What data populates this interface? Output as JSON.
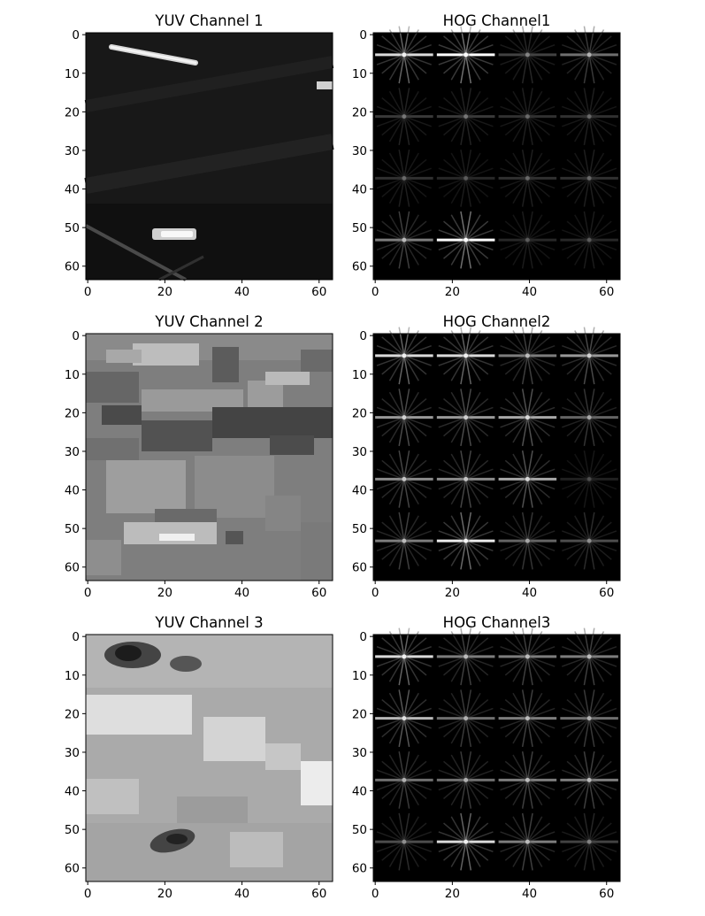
{
  "chart_data": [
    {
      "type": "heatmap",
      "kind": "yuv",
      "channel": 0,
      "title": "YUV Channel 1",
      "xticks": [
        "0",
        "20",
        "40",
        "60"
      ],
      "yticks": [
        "0",
        "10",
        "20",
        "30",
        "40",
        "50",
        "60"
      ],
      "xlim": [
        -0.5,
        63.5
      ],
      "ylim": [
        63.5,
        -0.5
      ],
      "grid": false,
      "colormap": "gray"
    },
    {
      "type": "heatmap",
      "kind": "hog",
      "channel": 0,
      "title": "HOG Channel1",
      "xticks": [
        "0",
        "20",
        "40",
        "60"
      ],
      "yticks": [
        "0",
        "10",
        "20",
        "30",
        "40",
        "50",
        "60"
      ],
      "xlim": [
        -0.5,
        63.5
      ],
      "ylim": [
        63.5,
        -0.5
      ],
      "grid": false,
      "colormap": "gray"
    },
    {
      "type": "heatmap",
      "kind": "yuv",
      "channel": 1,
      "title": "YUV Channel 2",
      "xticks": [
        "0",
        "20",
        "40",
        "60"
      ],
      "yticks": [
        "0",
        "10",
        "20",
        "30",
        "40",
        "50",
        "60"
      ],
      "xlim": [
        -0.5,
        63.5
      ],
      "ylim": [
        63.5,
        -0.5
      ],
      "grid": false,
      "colormap": "gray"
    },
    {
      "type": "heatmap",
      "kind": "hog",
      "channel": 1,
      "title": "HOG Channel2",
      "xticks": [
        "0",
        "20",
        "40",
        "60"
      ],
      "yticks": [
        "0",
        "10",
        "20",
        "30",
        "40",
        "50",
        "60"
      ],
      "xlim": [
        -0.5,
        63.5
      ],
      "ylim": [
        63.5,
        -0.5
      ],
      "grid": false,
      "colormap": "gray"
    },
    {
      "type": "heatmap",
      "kind": "yuv",
      "channel": 2,
      "title": "YUV Channel 3",
      "xticks": [
        "0",
        "20",
        "40",
        "60"
      ],
      "yticks": [
        "0",
        "10",
        "20",
        "30",
        "40",
        "50",
        "60"
      ],
      "xlim": [
        -0.5,
        63.5
      ],
      "ylim": [
        63.5,
        -0.5
      ],
      "grid": false,
      "colormap": "gray"
    },
    {
      "type": "heatmap",
      "kind": "hog",
      "channel": 2,
      "title": "HOG Channel3",
      "xticks": [
        "0",
        "20",
        "40",
        "60"
      ],
      "yticks": [
        "0",
        "10",
        "20",
        "30",
        "40",
        "50",
        "60"
      ],
      "xlim": [
        -0.5,
        63.5
      ],
      "ylim": [
        63.5,
        -0.5
      ],
      "grid": false,
      "colormap": "gray"
    }
  ]
}
